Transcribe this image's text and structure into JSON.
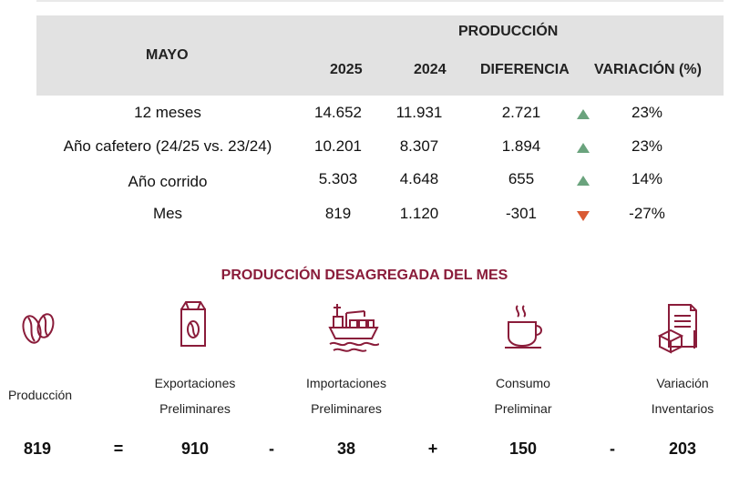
{
  "header": {
    "period": "MAYO",
    "group_title": "PRODUCCIÓN",
    "columns": [
      "2025",
      "2024",
      "DIFERENCIA",
      "VARIACIÓN (%)"
    ]
  },
  "rows": [
    {
      "label": "12 meses",
      "y2025": "14.652",
      "y2024": "11.931",
      "diff": "2.721",
      "trend": "up",
      "var": "23%"
    },
    {
      "label": "Año cafetero (24/25 vs. 23/24)",
      "y2025": "10.201",
      "y2024": "8.307",
      "diff": "1.894",
      "trend": "up",
      "var": "23%"
    },
    {
      "label": "Año corrido",
      "y2025": "5.303",
      "y2024": "4.648",
      "diff": "655",
      "trend": "up",
      "var": "14%"
    },
    {
      "label": "Mes",
      "y2025": "819",
      "y2024": "1.120",
      "diff": "-301",
      "trend": "down",
      "var": "-27%"
    }
  ],
  "breakdown": {
    "title": "PRODUCCIÓN DESAGREGADA DEL MES",
    "items": [
      {
        "line1": "Producción",
        "line2": "",
        "icon": "coffee-bean-icon",
        "value": "819"
      },
      {
        "line1": "Exportaciones",
        "line2": "Preliminares",
        "icon": "coffee-bag-icon",
        "value": "910"
      },
      {
        "line1": "Importaciones",
        "line2": "Preliminares",
        "icon": "cargo-ship-icon",
        "value": "38"
      },
      {
        "line1": "Consumo",
        "line2": "Preliminar",
        "icon": "coffee-cup-icon",
        "value": "150"
      },
      {
        "line1": "Variación",
        "line2": "Inventarios",
        "icon": "inventory-icon",
        "value": "203"
      }
    ],
    "operators": [
      "=",
      "-",
      "+",
      "-"
    ]
  },
  "colors": {
    "header_bg": "#e2e2e2",
    "accent": "#8a1c3a",
    "up": "#6aa37d",
    "down": "#d95a33"
  }
}
